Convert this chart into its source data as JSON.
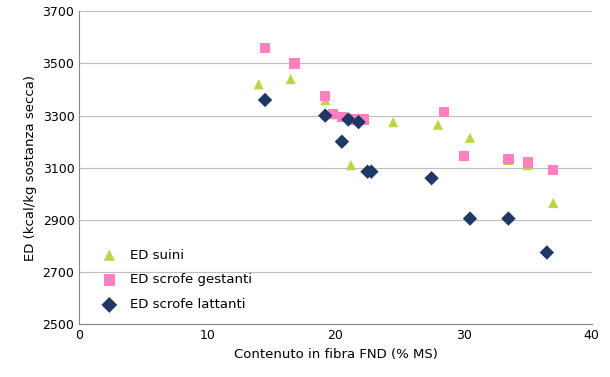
{
  "title": "",
  "xlabel": "Contenuto in fibra FND (% MS)",
  "ylabel": "ED (kcal/kg sostanza secca)",
  "xlim": [
    0,
    40
  ],
  "ylim": [
    2500,
    3700
  ],
  "xticks": [
    0,
    10,
    20,
    30,
    40
  ],
  "yticks": [
    2500,
    2700,
    2900,
    3100,
    3300,
    3500,
    3700
  ],
  "series": {
    "ED suini": {
      "x": [
        14.0,
        16.5,
        19.2,
        19.8,
        20.5,
        21.2,
        22.3,
        24.5,
        28.0,
        30.5,
        33.5,
        35.0,
        37.0
      ],
      "y": [
        3420,
        3440,
        3360,
        3305,
        3295,
        3110,
        3290,
        3275,
        3265,
        3215,
        3130,
        3110,
        2965
      ],
      "color": "#bdd444",
      "marker": "^",
      "markersize": 7,
      "label": "ED suini"
    },
    "ED scrofe gestanti": {
      "x": [
        14.5,
        16.8,
        19.2,
        19.8,
        20.5,
        21.5,
        22.2,
        28.5,
        30.0,
        33.5,
        35.0,
        37.0
      ],
      "y": [
        3560,
        3500,
        3375,
        3305,
        3295,
        3285,
        3285,
        3315,
        3145,
        3135,
        3120,
        3090
      ],
      "color": "#ff80bf",
      "marker": "s",
      "markersize": 7,
      "label": "ED scrofe gestanti"
    },
    "ED scrofe lattanti": {
      "x": [
        14.5,
        19.2,
        20.5,
        21.0,
        21.8,
        22.8,
        22.5,
        27.5,
        30.5,
        33.5,
        36.5
      ],
      "y": [
        3360,
        3300,
        3200,
        3285,
        3275,
        3085,
        3085,
        3060,
        2905,
        2905,
        2775
      ],
      "color": "#1f3864",
      "marker": "D",
      "markersize": 7,
      "label": "ED scrofe lattanti"
    }
  },
  "background_color": "#ffffff",
  "grid_color": "#bebebe",
  "legend_fontsize": 9.5,
  "axis_fontsize": 9.5,
  "tick_fontsize": 9
}
